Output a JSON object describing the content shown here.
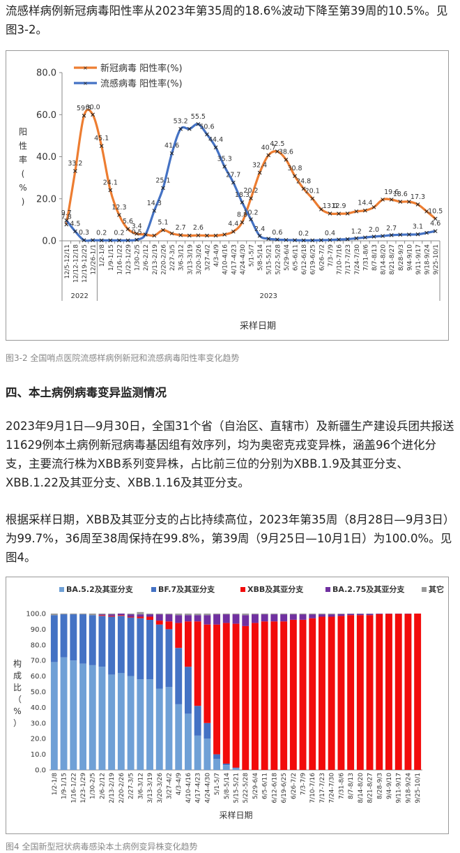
{
  "intro_text": "流感样病例新冠病毒阳性率从2023年第35周的18.6%波动下降至第39周的10.5%。见图3-2。",
  "figure1_caption": "图3-2 全国哨点医院流感样病例新冠和流感病毒阳性率变化趋势",
  "section_heading": "四、本土病例病毒变异监测情况",
  "paragraph1": "2023年9月1日—9月30日，全国31个省（自治区、直辖市）及新疆生产建设兵团共报送11629例本土病例新冠病毒基因组有效序列，均为奥密克戎变异株，涵盖96个进化分支，主要流行株为XBB系列变异株，占比前三位的分别为XBB.1.9及其亚分支、XBB.1.22及其亚分支、XBB.1.16及其亚分支。",
  "paragraph2": "根据采样日期，XBB及其亚分支的占比持续高位，2023年第35周（8月28日—9月3日）为99.7%，36周至38周保持在99.8%，第39周（9月25日—10月1日）为100.0%。见图4。",
  "figure2_caption": "图4 全国新型冠状病毒感染本土病例变异株变化趋势",
  "chart_data": [
    {
      "type": "line",
      "title": "",
      "ylabel": "阳性率(%)",
      "xlabel": "采样日期",
      "ylim": [
        0,
        80
      ],
      "yticks": [
        "0.0",
        "20.0",
        "40.0",
        "60.0",
        "80.0"
      ],
      "year_labels": [
        "2022",
        "2023"
      ],
      "legend_position": "top-left",
      "grid": false,
      "categories": [
        "12/5-12/11",
        "12/12-12/18",
        "12/19-12/25",
        "12/26-1/1",
        "1/2-1/8",
        "1/9-1/15",
        "1/16-1/22",
        "1/23-1/29",
        "1/30-2/5",
        "2/6-2/12",
        "2/13-2/19",
        "2/20-2/26",
        "2/27-3/5",
        "3/6-3/12",
        "3/13-3/19",
        "3/20-3/26",
        "3/27-4/2",
        "4/3-4/9",
        "4/10-4/16",
        "4/17-4/23",
        "4/24-4/30",
        "5/1-5/7",
        "5/8-5/14",
        "5/15-5/21",
        "5/22-5/28",
        "5/29-6/4",
        "6/5-6/11",
        "6/12-6/18",
        "6/19-6/25",
        "6/26-7/2",
        "7/3-7/9",
        "7/10-7/16",
        "7/17-7/23",
        "7/24-7/30",
        "7/31-8/6",
        "8/7-8/13",
        "8/14-8/20",
        "8/21-8/27",
        "8/28-9/3",
        "9/4-9/10",
        "9/11-9/17",
        "9/18-9/24",
        "9/25-10/1"
      ],
      "series": [
        {
          "name": "新冠病毒 阳性率(%)",
          "color": "#ED7D31",
          "values": [
            7.8,
            33.2,
            59.5,
            60.0,
            45.1,
            24.1,
            12.3,
            5.6,
            3.4,
            3.0,
            2.5,
            5.1,
            3.5,
            2.7,
            2.5,
            2.6,
            2.5,
            2.5,
            3.0,
            4.4,
            8.8,
            20.2,
            32.4,
            40.7,
            42.5,
            38.6,
            30.8,
            24.8,
            20.1,
            15.0,
            13.0,
            12.9,
            13.0,
            14.0,
            14.4,
            16.0,
            19.6,
            19.6,
            18.6,
            18.6,
            17.3,
            14.0,
            10.5
          ],
          "labels": {
            "0": "7.8",
            "1": "33.2",
            "2": "59.5",
            "3": "60.0",
            "4": "45.1",
            "5": "24.1",
            "6": "12.3",
            "7": "5.6",
            "8": "3.4",
            "11": "5.1",
            "13": "2.7",
            "15": "2.6",
            "19": "4.4",
            "20": "8.8",
            "21": "20.2",
            "22": "32.4",
            "23": "40.7",
            "24": "42.5",
            "25": "38.6",
            "26": "30.8",
            "27": "24.8",
            "28": "20.1",
            "30": "13.0",
            "31": "12.9",
            "34": "14.4",
            "37": "19.6",
            "38": "18.6",
            "40": "17.3",
            "42": "10.5"
          }
        },
        {
          "name": "流感病毒 阳性率(%)",
          "color": "#4472C4",
          "values": [
            9.7,
            4.5,
            0.3,
            0.3,
            0.2,
            0.2,
            0.2,
            0.2,
            0.5,
            3.0,
            14.3,
            25.1,
            41.6,
            53.2,
            53.2,
            55.5,
            50.6,
            44.4,
            35.3,
            27.7,
            18.3,
            10.2,
            2.4,
            1.0,
            0.6,
            0.4,
            0.3,
            0.2,
            0.2,
            0.3,
            0.4,
            0.6,
            0.8,
            1.2,
            1.6,
            2.0,
            2.3,
            2.7,
            2.9,
            3.0,
            3.1,
            3.8,
            4.6
          ],
          "labels": {
            "0": "9.7",
            "1": "4.5",
            "2": "0.3",
            "4": "0.2",
            "6": "0.2",
            "8": "0.5",
            "10": "14.3",
            "11": "25.1",
            "12": "41.6",
            "13": "53.2",
            "15": "55.5",
            "16": "50.6",
            "17": "44.4",
            "18": "35.3",
            "19": "27.7",
            "20": "18.3",
            "21": "10.2",
            "22": "2.4",
            "24": "0.6",
            "27": "0.2",
            "30": "0.4",
            "33": "1.2",
            "35": "2.0",
            "37": "2.7",
            "40": "3.1",
            "42": "4.6"
          }
        }
      ]
    },
    {
      "type": "bar",
      "stacked": true,
      "title": "",
      "ylabel": "构成比（%）",
      "xlabel": "采样日期",
      "ylim": [
        0,
        100
      ],
      "yticks": [
        "0.0",
        "10.0",
        "20.0",
        "30.0",
        "40.0",
        "50.0",
        "60.0",
        "70.0",
        "80.0",
        "90.0",
        "100.0"
      ],
      "legend_position": "top",
      "grid": false,
      "categories": [
        "1/2-1/8",
        "1/9-1/15",
        "1/16-1/22",
        "1/23-1/29",
        "1/30-2/5",
        "2/6-2/12",
        "2/13-2/19",
        "2/20-2/26",
        "2/27-3/5",
        "3/6-3/12",
        "3/13-3/19",
        "3/20-3/26",
        "3/27-4/2",
        "4/3-4/9",
        "4/10-4/16",
        "4/17-4/23",
        "4/24-4/30",
        "5/1-5/7",
        "5/8-5/14",
        "5/15-5/21",
        "5/22-5/28",
        "5/29-6/4",
        "6/5-6/11",
        "6/12-6/18",
        "6/19-6/25",
        "6/26-7/2",
        "7/3-7/9",
        "7/10-7/16",
        "7/17-7/23",
        "7/24-7/30",
        "7/31-8/6",
        "8/7-8/13",
        "8/14-8/20",
        "8/21-8/27",
        "8/28-9/3",
        "9/4-9/10",
        "9/11-9/17",
        "9/18-9/24",
        "9/25-10/1"
      ],
      "series": [
        {
          "name": "BA.5.2及其亚分支",
          "color": "#6FA0D6",
          "values": [
            69,
            72,
            70,
            68,
            67,
            66,
            61,
            62,
            60,
            58,
            58,
            52,
            53,
            42,
            36,
            22,
            20,
            7,
            3,
            1,
            0,
            0,
            0,
            0,
            0,
            0,
            0,
            0,
            0,
            0,
            0,
            0,
            0,
            0,
            0,
            0,
            0,
            0,
            0
          ]
        },
        {
          "name": "BF.7及其亚分支",
          "color": "#4472C4",
          "values": [
            30,
            27.5,
            29.5,
            31.5,
            32,
            32.5,
            37,
            36.5,
            37.5,
            39,
            38,
            41,
            37,
            36,
            30,
            19,
            10,
            3,
            1,
            0.5,
            0,
            0,
            0,
            0,
            0,
            0,
            0,
            0,
            0,
            0,
            0,
            0,
            0,
            0,
            0,
            0,
            0,
            0,
            0
          ]
        },
        {
          "name": "XBB及其亚分支",
          "color": "#F20B0B",
          "values": [
            0,
            0,
            0,
            0,
            0,
            0.5,
            0.5,
            0.5,
            0.5,
            1,
            2,
            2.5,
            5,
            16,
            29,
            54,
            63,
            83,
            90,
            92,
            92,
            94,
            95,
            95,
            95,
            96,
            96,
            97,
            98,
            98,
            98.5,
            99,
            99,
            99,
            99.7,
            99.8,
            99.8,
            99.8,
            100
          ]
        },
        {
          "name": "BA.2.75及其亚分支",
          "color": "#7030A0",
          "values": [
            0,
            0,
            0,
            0,
            0,
            0.5,
            1,
            1,
            1.5,
            1.5,
            1.5,
            4,
            4.5,
            5,
            4,
            4,
            6,
            6.5,
            5.5,
            6,
            7,
            5.5,
            4.5,
            4.5,
            4.5,
            3.5,
            3.5,
            2.5,
            1.5,
            1.5,
            1.2,
            0.8,
            0.8,
            0.8,
            0.3,
            0.2,
            0.2,
            0.2,
            0
          ]
        },
        {
          "name": "其它",
          "color": "#999999",
          "values": [
            1,
            0.5,
            0.5,
            0.5,
            1,
            0.5,
            0.5,
            0,
            0.5,
            1.5,
            0.5,
            0.5,
            0.5,
            1,
            1,
            1,
            1,
            0.5,
            0.5,
            0.5,
            1,
            0.5,
            0.5,
            0.5,
            0.5,
            0.5,
            0.5,
            0.5,
            0.5,
            0.5,
            0.3,
            0.2,
            0.2,
            0.2,
            0,
            0,
            0,
            0,
            0
          ]
        }
      ]
    }
  ]
}
